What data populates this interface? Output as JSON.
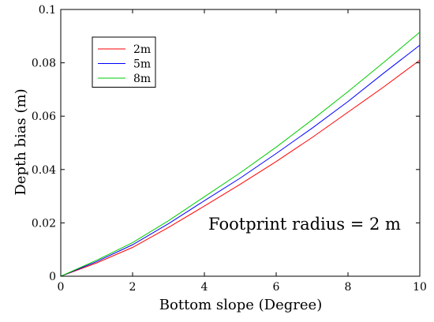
{
  "chart_data": {
    "type": "line",
    "xlabel": "Bottom slope (Degree)",
    "ylabel": "Depth bias (m)",
    "xlim": [
      0,
      10
    ],
    "ylim": [
      0,
      0.1
    ],
    "xticks": [
      0,
      2,
      4,
      6,
      8,
      10
    ],
    "yticks": [
      0,
      0.02,
      0.04,
      0.06,
      0.08,
      0.1
    ],
    "xtick_labels": [
      "0",
      "2",
      "4",
      "6",
      "8",
      "10"
    ],
    "ytick_labels": [
      "0",
      "0.02",
      "0.04",
      "0.06",
      "0.08",
      "0.1"
    ],
    "grid": false,
    "legend_position": "top-left",
    "annotation": "Footprint radius = 2 m",
    "x": [
      0,
      1,
      2,
      3,
      4,
      5,
      6,
      7,
      8,
      9,
      10
    ],
    "series": [
      {
        "name": "2m",
        "color": "#ff0000",
        "values": [
          0,
          0.005,
          0.0108,
          0.0183,
          0.0263,
          0.0345,
          0.043,
          0.052,
          0.0615,
          0.071,
          0.081
        ]
      },
      {
        "name": "5m",
        "color": "#0000ff",
        "values": [
          0,
          0.0055,
          0.0118,
          0.0197,
          0.0283,
          0.0368,
          0.046,
          0.0555,
          0.0655,
          0.0762,
          0.0866
        ]
      },
      {
        "name": "8m",
        "color": "#00cc00",
        "values": [
          0,
          0.006,
          0.0126,
          0.0208,
          0.0298,
          0.0388,
          0.0484,
          0.0586,
          0.0692,
          0.0802,
          0.0915
        ]
      }
    ]
  }
}
